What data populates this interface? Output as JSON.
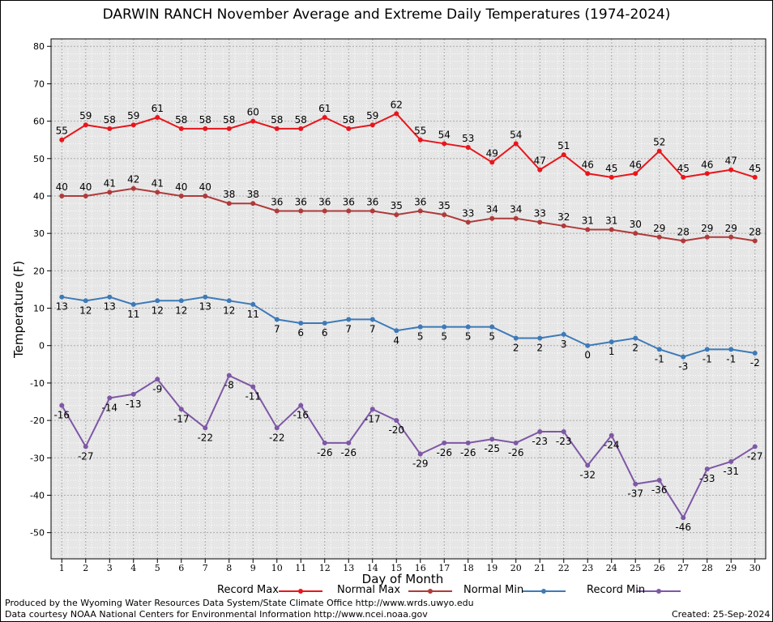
{
  "chart_data": {
    "type": "line",
    "title": "DARWIN RANCH November Average and Extreme Daily Temperatures (1974-2024)",
    "xlabel": "Day of Month",
    "ylabel": "Temperature (F)",
    "x": [
      1,
      2,
      3,
      4,
      5,
      6,
      7,
      8,
      9,
      10,
      11,
      12,
      13,
      14,
      15,
      16,
      17,
      18,
      19,
      20,
      21,
      22,
      23,
      24,
      25,
      26,
      27,
      28,
      29,
      30
    ],
    "xlim": [
      0.55,
      30.45
    ],
    "ylim": [
      -57,
      82
    ],
    "yticks": [
      -50,
      -40,
      -30,
      -20,
      -10,
      0,
      10,
      20,
      30,
      40,
      50,
      60,
      70,
      80
    ],
    "grid": true,
    "legend_placement": "bottom",
    "series": [
      {
        "name": "Record Max",
        "color": "#e8161c",
        "values": [
          55,
          59,
          58,
          59,
          61,
          58,
          58,
          58,
          60,
          58,
          58,
          61,
          58,
          59,
          62,
          55,
          54,
          53,
          49,
          54,
          47,
          51,
          46,
          45,
          46,
          52,
          45,
          46,
          47,
          45
        ]
      },
      {
        "name": "Normal Max",
        "color": "#b03a3a",
        "values": [
          40,
          40,
          41,
          42,
          41,
          40,
          40,
          38,
          38,
          36,
          36,
          36,
          36,
          36,
          35,
          36,
          35,
          33,
          34,
          34,
          33,
          32,
          31,
          31,
          30,
          29,
          28,
          29,
          29,
          28
        ]
      },
      {
        "name": "Normal Min",
        "color": "#3d7ab8",
        "values": [
          13,
          12,
          13,
          11,
          12,
          12,
          13,
          12,
          11,
          7,
          6,
          6,
          7,
          7,
          4,
          5,
          5,
          5,
          5,
          2,
          2,
          3,
          0,
          1,
          2,
          -1,
          -3,
          -1,
          -1,
          -2
        ]
      },
      {
        "name": "Record Min",
        "color": "#7e57a6",
        "values": [
          -16,
          -27,
          -14,
          -13,
          -9,
          -17,
          -22,
          -8,
          -11,
          -22,
          -16,
          -26,
          -26,
          -17,
          -20,
          -29,
          -26,
          -26,
          -25,
          -26,
          -23,
          -23,
          -32,
          -24,
          -37,
          -36,
          -46,
          -33,
          -31,
          -27
        ]
      }
    ]
  },
  "footer": {
    "produced_by": "Produced by the Wyoming Water Resources Data System/State Climate Office http://www.wrds.uwyo.edu",
    "data_courtesy": "Data courtesy NOAA National Centers for Environmental Information http://www.ncei.noaa.gov",
    "created": "Created:  25-Sep-2024"
  }
}
